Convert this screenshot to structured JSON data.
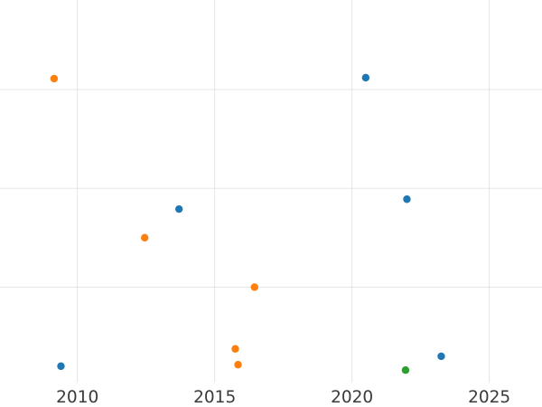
{
  "figure": {
    "background": "#ffffff",
    "grid_color": "#e5e5e5",
    "tick_label_color": "#3b3b3b"
  },
  "chart_data": {
    "type": "scatter",
    "title": "",
    "xlabel": "",
    "ylabel": "",
    "x_tick_labels": [
      "2010",
      "2015",
      "2020",
      "2025"
    ],
    "x_tick_values": [
      2010,
      2015,
      2020,
      2025
    ],
    "y_tick_labels": [],
    "y_gridline_values": [
      1,
      2,
      3
    ],
    "xlim": [
      2007.18,
      2026.92
    ],
    "ylim": [
      0.034,
      3.906
    ],
    "grid": true,
    "legend_position": "none",
    "marker_radius_px": 4.2,
    "series": [
      {
        "name": "blue",
        "color": "#1f77b4",
        "points": [
          {
            "x": 2009.4,
            "y": 0.2
          },
          {
            "x": 2013.7,
            "y": 1.79
          },
          {
            "x": 2020.5,
            "y": 3.12
          },
          {
            "x": 2022.0,
            "y": 1.89
          },
          {
            "x": 2023.25,
            "y": 0.3
          }
        ]
      },
      {
        "name": "orange",
        "color": "#ff7f0e",
        "points": [
          {
            "x": 2009.15,
            "y": 3.11
          },
          {
            "x": 2012.45,
            "y": 1.5
          },
          {
            "x": 2015.75,
            "y": 0.375
          },
          {
            "x": 2015.85,
            "y": 0.215
          },
          {
            "x": 2016.45,
            "y": 1.0
          }
        ]
      },
      {
        "name": "green",
        "color": "#2ca02c",
        "points": [
          {
            "x": 2021.95,
            "y": 0.16
          }
        ]
      }
    ]
  }
}
